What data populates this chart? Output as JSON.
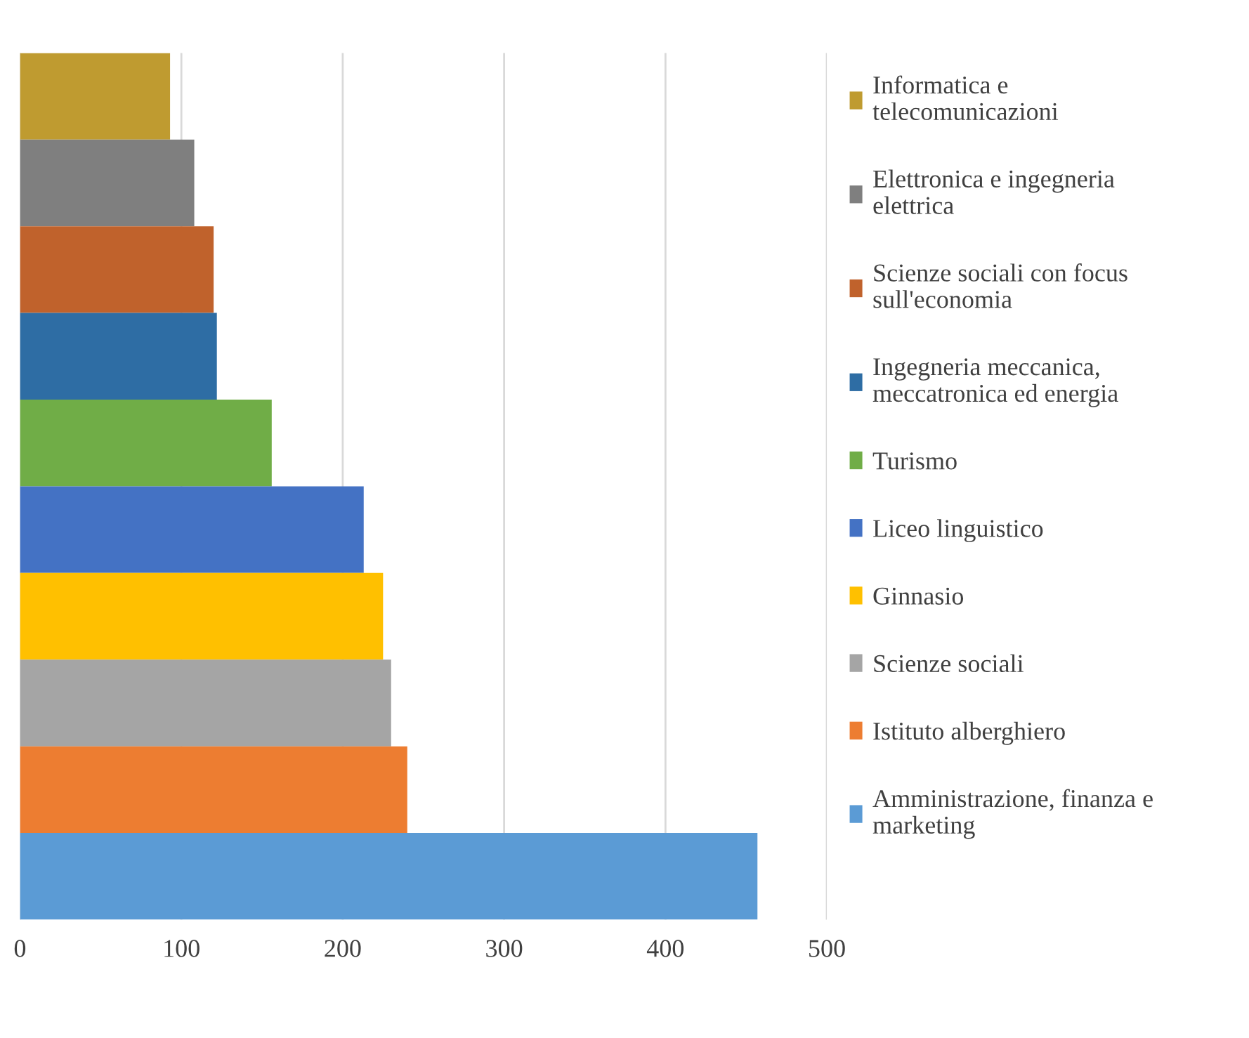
{
  "chart_data": {
    "type": "bar",
    "orientation": "horizontal",
    "categories": [
      null,
      null,
      null,
      null,
      null,
      null,
      null,
      null,
      null,
      null
    ],
    "series": [
      {
        "name": "Informatica e\ntelecomunicazioni",
        "color": "#bf9b30",
        "values": [
          93,
          null,
          null,
          null,
          null,
          null,
          null,
          null,
          null,
          null
        ]
      },
      {
        "name": "Elettronica e ingegneria\nelettrica",
        "color": "#7f7f7f",
        "values": [
          null,
          108,
          null,
          null,
          null,
          null,
          null,
          null,
          null,
          null
        ]
      },
      {
        "name": "Scienze sociali con focus\nsull'economia",
        "color": "#c0622c",
        "values": [
          null,
          null,
          120,
          null,
          null,
          null,
          null,
          null,
          null,
          null
        ]
      },
      {
        "name": "Ingegneria meccanica,\nmeccatronica ed energia",
        "color": "#2e6da4",
        "values": [
          null,
          null,
          null,
          122,
          null,
          null,
          null,
          null,
          null,
          null
        ]
      },
      {
        "name": "Turismo",
        "color": "#70ad47",
        "values": [
          null,
          null,
          null,
          null,
          156,
          null,
          null,
          null,
          null,
          null
        ]
      },
      {
        "name": "Liceo linguistico",
        "color": "#4472c4",
        "values": [
          null,
          null,
          null,
          null,
          null,
          213,
          null,
          null,
          null,
          null
        ]
      },
      {
        "name": "Ginnasio",
        "color": "#ffc000",
        "values": [
          null,
          null,
          null,
          null,
          null,
          null,
          225,
          null,
          null,
          null
        ]
      },
      {
        "name": "Scienze sociali",
        "color": "#a5a5a5",
        "values": [
          null,
          null,
          null,
          null,
          null,
          null,
          null,
          230,
          null,
          null
        ]
      },
      {
        "name": "Istituto alberghiero",
        "color": "#ed7d31",
        "values": [
          null,
          null,
          null,
          null,
          null,
          null,
          null,
          null,
          240,
          null
        ]
      },
      {
        "name": "Amministrazione, finanza e\nmarketing",
        "color": "#5b9bd5",
        "values": [
          null,
          null,
          null,
          null,
          null,
          null,
          null,
          null,
          null,
          457
        ]
      }
    ],
    "xlim": [
      0,
      500
    ],
    "xticks": [
      0,
      100,
      200,
      300,
      400,
      500
    ],
    "grid": "x",
    "legend": "right"
  }
}
